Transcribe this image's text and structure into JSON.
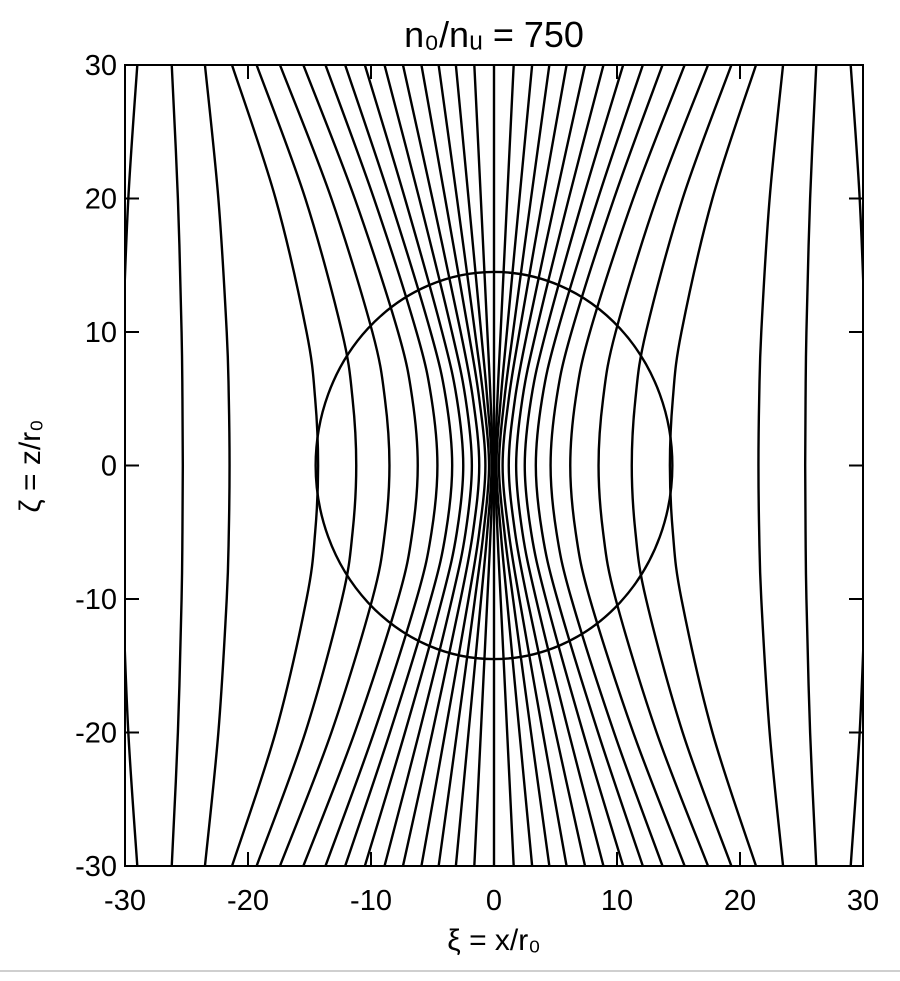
{
  "chart_data": {
    "type": "fieldlines",
    "title": "n₀/nᵤ = 750",
    "x_label": "ξ = x/r₀",
    "y_label": "ζ = z/r₀",
    "xlim": [
      -30,
      30
    ],
    "ylim": [
      -30,
      30
    ],
    "xticks": [
      -30,
      -20,
      -10,
      0,
      10,
      20,
      30
    ],
    "yticks": [
      -30,
      -20,
      -10,
      0,
      10,
      20,
      30
    ],
    "color": "#000000",
    "y": [
      -30,
      -20,
      -10,
      -5,
      0,
      5,
      10,
      20,
      30
    ],
    "series": [
      {
        "x": [
          -29,
          -29.73,
          -30.16,
          -30.26,
          -30.3,
          -30.26,
          -30.16,
          -29.73,
          -29
        ]
      },
      {
        "x": [
          -26.2,
          -25.7,
          -25.4,
          -25.33,
          -25.3,
          -25.33,
          -25.4,
          -25.7,
          -26.2
        ]
      },
      {
        "x": [
          -23.5,
          -22.41,
          -21.73,
          -21.56,
          -21.5,
          -21.56,
          -21.73,
          -22.41,
          -23.5
        ]
      },
      {
        "x": [
          -21.3,
          -17.76,
          -15.24,
          -14.54,
          -14.3,
          -14.54,
          -15.24,
          -17.76,
          -21.3
        ]
      },
      {
        "x": [
          -19.3,
          -15.34,
          -12.36,
          -11.5,
          -11.2,
          -11.5,
          -12.36,
          -15.34,
          -19.3
        ]
      },
      {
        "x": [
          -17.4,
          -13.22,
          -9.89,
          -8.87,
          -8.5,
          -8.87,
          -9.89,
          -13.22,
          -17.4
        ]
      },
      {
        "x": [
          -15.5,
          -11.32,
          -7.8,
          -6.64,
          -6.2,
          -6.64,
          -7.8,
          -11.32,
          -15.5
        ]
      },
      {
        "x": [
          -13.7,
          -9.76,
          -6.3,
          -5.08,
          -4.6,
          -5.08,
          -6.3,
          -9.76,
          -13.7
        ]
      },
      {
        "x": [
          -12.1,
          -8.46,
          -5.15,
          -3.91,
          -3.4,
          -3.91,
          -5.15,
          -8.46,
          -12.1
        ]
      },
      {
        "x": [
          -10.5,
          -7.24,
          -4.22,
          -3.02,
          -2.5,
          -3.02,
          -4.22,
          -7.24,
          -10.5
        ]
      },
      {
        "x": [
          -8.9,
          -6.08,
          -3.42,
          -2.31,
          -1.8,
          -2.31,
          -3.42,
          -6.08,
          -8.9
        ]
      },
      {
        "x": [
          -7.4,
          -5.01,
          -2.71,
          -1.71,
          -1.2,
          -1.71,
          -2.71,
          -5.01,
          -7.4
        ]
      },
      {
        "x": [
          -5.9,
          -3.97,
          -2.07,
          -1.2,
          -0.7,
          -1.2,
          -2.07,
          -3.97,
          -5.9
        ]
      },
      {
        "x": [
          -4.5,
          -3.01,
          -1.55,
          -0.85,
          -0.4,
          -0.85,
          -1.55,
          -3.01,
          -4.5
        ]
      },
      {
        "x": [
          -3.1,
          -2.07,
          -1.05,
          -0.55,
          -0.2,
          -0.55,
          -1.05,
          -2.07,
          -3.1
        ]
      },
      {
        "x": [
          -1.6,
          -1.07,
          -0.54,
          -0.28,
          -0.1,
          -0.28,
          -0.54,
          -1.07,
          -1.6
        ]
      },
      {
        "x": [
          0,
          0,
          0,
          0,
          0,
          0,
          0,
          0,
          0
        ]
      },
      {
        "x": [
          1.6,
          1.07,
          0.54,
          0.28,
          0.1,
          0.28,
          0.54,
          1.07,
          1.6
        ]
      },
      {
        "x": [
          3.1,
          2.07,
          1.05,
          0.55,
          0.2,
          0.55,
          1.05,
          2.07,
          3.1
        ]
      },
      {
        "x": [
          4.5,
          3.01,
          1.55,
          0.85,
          0.4,
          0.85,
          1.55,
          3.01,
          4.5
        ]
      },
      {
        "x": [
          5.9,
          3.97,
          2.07,
          1.2,
          0.7,
          1.2,
          2.07,
          3.97,
          5.9
        ]
      },
      {
        "x": [
          7.4,
          5.01,
          2.71,
          1.71,
          1.2,
          1.71,
          2.71,
          5.01,
          7.4
        ]
      },
      {
        "x": [
          8.9,
          6.08,
          3.42,
          2.31,
          1.8,
          2.31,
          3.42,
          6.08,
          8.9
        ]
      },
      {
        "x": [
          10.5,
          7.24,
          4.22,
          3.02,
          2.5,
          3.02,
          4.22,
          7.24,
          10.5
        ]
      },
      {
        "x": [
          12.1,
          8.46,
          5.15,
          3.91,
          3.4,
          3.91,
          5.15,
          8.46,
          12.1
        ]
      },
      {
        "x": [
          13.7,
          9.76,
          6.3,
          5.08,
          4.6,
          5.08,
          6.3,
          9.76,
          13.7
        ]
      },
      {
        "x": [
          15.5,
          11.32,
          7.8,
          6.64,
          6.2,
          6.64,
          7.8,
          11.32,
          15.5
        ]
      },
      {
        "x": [
          17.4,
          13.22,
          9.89,
          8.87,
          8.5,
          8.87,
          9.89,
          13.22,
          17.4
        ]
      },
      {
        "x": [
          19.3,
          15.34,
          12.36,
          11.5,
          11.2,
          11.5,
          12.36,
          15.34,
          19.3
        ]
      },
      {
        "x": [
          21.3,
          17.76,
          15.24,
          14.54,
          14.3,
          14.54,
          15.24,
          17.76,
          21.3
        ]
      },
      {
        "x": [
          23.5,
          22.41,
          21.73,
          21.56,
          21.5,
          21.56,
          21.73,
          22.41,
          23.5
        ]
      },
      {
        "x": [
          26.2,
          25.7,
          25.4,
          25.33,
          25.3,
          25.33,
          25.4,
          25.7,
          26.2
        ]
      },
      {
        "x": [
          29,
          29.73,
          30.16,
          30.26,
          30.3,
          30.26,
          30.16,
          29.73,
          29
        ]
      }
    ],
    "circle_radius": 14.5
  }
}
